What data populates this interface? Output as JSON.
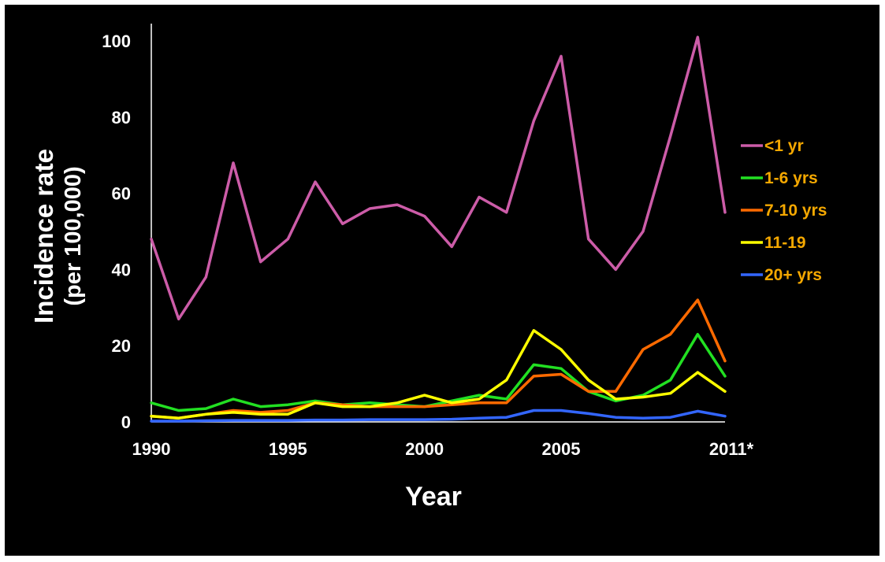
{
  "chart_data": {
    "type": "line",
    "title": "",
    "xlabel": "Year",
    "ylabel_line1": "Incidence rate",
    "ylabel_line2": "(per 100,000)",
    "xlim": [
      1990,
      2011
    ],
    "ylim": [
      0,
      100
    ],
    "x_ticks": [
      {
        "value": 1990,
        "label": "1990"
      },
      {
        "value": 1995,
        "label": "1995"
      },
      {
        "value": 2000,
        "label": "2000"
      },
      {
        "value": 2005,
        "label": "2005"
      },
      {
        "value": 2011,
        "label": "2011*"
      }
    ],
    "y_ticks": [
      {
        "value": 0,
        "label": "0"
      },
      {
        "value": 20,
        "label": "20"
      },
      {
        "value": 40,
        "label": "40"
      },
      {
        "value": 60,
        "label": "60"
      },
      {
        "value": 80,
        "label": "80"
      },
      {
        "value": 100,
        "label": "100"
      }
    ],
    "grid": false,
    "legend_position": "right",
    "legend_text_color": "#f5a800",
    "background_color": "#000000",
    "axis_color": "#ffffff",
    "x": [
      1990,
      1991,
      1992,
      1993,
      1994,
      1995,
      1996,
      1997,
      1998,
      1999,
      2000,
      2001,
      2002,
      2003,
      2004,
      2005,
      2006,
      2007,
      2008,
      2009,
      2010,
      2011
    ],
    "series": [
      {
        "name": "<1 yr",
        "color": "#cc5ca8",
        "values": [
          48,
          27,
          38,
          68,
          42,
          48,
          63,
          52,
          56,
          57,
          54,
          46,
          59,
          55,
          79,
          96,
          48,
          40,
          50,
          75,
          101,
          55
        ]
      },
      {
        "name": "1-6 yrs",
        "color": "#22e022",
        "values": [
          5,
          3,
          3.5,
          6,
          4,
          4.5,
          5.5,
          4.5,
          5,
          4.5,
          4,
          5.5,
          7,
          6,
          15,
          14,
          8,
          5.5,
          7,
          11,
          23,
          12
        ]
      },
      {
        "name": "7-10 yrs",
        "color": "#ff6a00",
        "values": [
          1.5,
          1,
          2,
          3,
          2.5,
          3,
          5,
          4.5,
          4,
          4,
          4,
          4.5,
          5,
          5,
          12,
          12.5,
          8,
          8,
          19,
          23,
          32,
          16
        ]
      },
      {
        "name": "11-19",
        "color": "#ffff00",
        "values": [
          1.5,
          1,
          2,
          2.5,
          2,
          2,
          5,
          4,
          4,
          5,
          7,
          5,
          6,
          11,
          24,
          19,
          11,
          6,
          6.5,
          7.5,
          13,
          8
        ]
      },
      {
        "name": "20+ yrs",
        "color": "#3366ff",
        "values": [
          0.2,
          0.2,
          0.3,
          0.4,
          0.4,
          0.4,
          0.5,
          0.5,
          0.6,
          0.6,
          0.6,
          0.7,
          1,
          1.2,
          3,
          3,
          2.2,
          1.2,
          1,
          1.2,
          2.8,
          1.5
        ]
      }
    ]
  }
}
